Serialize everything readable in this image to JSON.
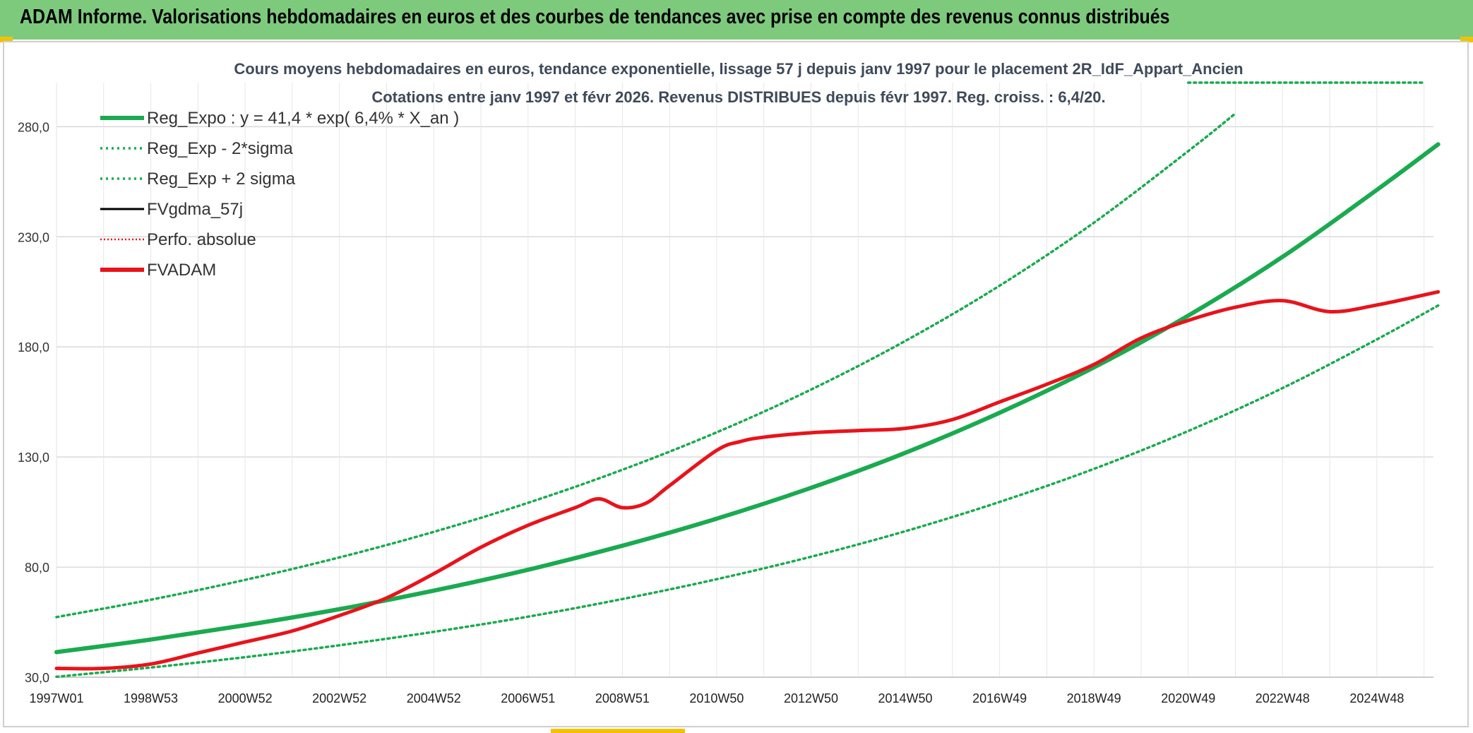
{
  "header": {
    "title": "ADAM Informe. Valorisations hebdomadaires en euros et des courbes de tendances avec prise en compte des revenus connus distribués"
  },
  "colors": {
    "banner": "#7dca7d",
    "green": "#1aaa50",
    "red": "#e8131b",
    "black": "#000000",
    "grid": "#d9d9d9",
    "title_text": "#3f4a5a"
  },
  "chart_data": {
    "type": "line",
    "title": "Cours moyens hebdomadaires en euros, tendance exponentielle, lissage 57 j depuis janv 1997 pour le placement 2R_IdF_Appart_Ancien",
    "subtitle": "Cotations entre janv 1997 et févr 2026. Revenus DISTRIBUES depuis févr 1997. Reg. croiss. : 6,4/20.",
    "xlabel": "",
    "ylabel": "",
    "x_range": [
      1997.0,
      2026.2
    ],
    "ylim": [
      30,
      300
    ],
    "y_ticks": [
      "30,0",
      "80,0",
      "130,0",
      "180,0",
      "230,0",
      "280,0"
    ],
    "y_tick_values": [
      30,
      80,
      130,
      180,
      230,
      280
    ],
    "x_ticks": [
      {
        "label": "1997W01",
        "x": 1997.0
      },
      {
        "label": "1998W53",
        "x": 1999.0
      },
      {
        "label": "2000W52",
        "x": 2001.0
      },
      {
        "label": "2002W52",
        "x": 2003.0
      },
      {
        "label": "2004W52",
        "x": 2005.0
      },
      {
        "label": "2006W51",
        "x": 2007.0
      },
      {
        "label": "2008W51",
        "x": 2009.0
      },
      {
        "label": "2010W50",
        "x": 2011.0
      },
      {
        "label": "2012W50",
        "x": 2013.0
      },
      {
        "label": "2014W50",
        "x": 2015.0
      },
      {
        "label": "2016W49",
        "x": 2017.0
      },
      {
        "label": "2018W49",
        "x": 2019.0
      },
      {
        "label": "2020W49",
        "x": 2021.0
      },
      {
        "label": "2022W48",
        "x": 2023.0
      },
      {
        "label": "2024W48",
        "x": 2025.0
      }
    ],
    "legend": [
      {
        "label": "Reg_Expo : y = 41,4 * exp( 6,4% *  X_an )",
        "color": "#1aaa50",
        "style": "solid-thick"
      },
      {
        "label": "Reg_Exp - 2*sigma",
        "color": "#1aaa50",
        "style": "dotted"
      },
      {
        "label": "Reg_Exp + 2 sigma",
        "color": "#1aaa50",
        "style": "dotted"
      },
      {
        "label": "FVgdma_57j",
        "color": "#000000",
        "style": "solid"
      },
      {
        "label": "Perfo. absolue",
        "color": "#e8131b",
        "style": "dotted-thin"
      },
      {
        "label": "FVADAM",
        "color": "#e8131b",
        "style": "solid-thick"
      }
    ],
    "legend_position": "top-left",
    "series": [
      {
        "name": "Reg_Expo : y = 41,4 * exp( 6,4% *  X_an )",
        "x": [
          1997.0,
          1999.0,
          2001.0,
          2003.0,
          2005.0,
          2007.0,
          2009.0,
          2011.0,
          2013.0,
          2015.0,
          2017.0,
          2019.0,
          2021.0,
          2023.0,
          2025.0,
          2026.3
        ],
        "values": [
          41.4,
          47.1,
          53.6,
          60.9,
          69.3,
          78.8,
          89.7,
          102.0,
          116.0,
          131.9,
          150.1,
          170.7,
          194.2,
          220.9,
          251.3,
          272.0
        ]
      },
      {
        "name": "Reg_Exp - 2*sigma",
        "x": [
          1997.0,
          1999.0,
          2001.0,
          2003.0,
          2005.0,
          2007.0,
          2009.0,
          2011.0,
          2013.0,
          2015.0,
          2017.0,
          2019.0,
          2021.0,
          2023.0,
          2025.0,
          2026.3
        ],
        "values": [
          30.2,
          34.4,
          39.1,
          44.5,
          50.6,
          57.5,
          65.5,
          74.5,
          84.7,
          96.3,
          109.6,
          124.6,
          141.8,
          161.3,
          183.4,
          198.8
        ]
      },
      {
        "name": "Reg_Exp + 2 sigma",
        "x": [
          1997.0,
          1999.0,
          2001.0,
          2003.0,
          2005.0,
          2007.0,
          2009.0,
          2011.0,
          2013.0,
          2015.0,
          2017.0,
          2019.0,
          2021.0,
          2022.0
        ],
        "values": [
          57.3,
          65.2,
          74.2,
          84.4,
          96.0,
          109.2,
          124.2,
          141.2,
          160.6,
          182.7,
          207.8,
          236.4,
          268.9,
          286.0
        ]
      },
      {
        "name": "FVgdma_57j",
        "x": [
          2021.0,
          2026.0
        ],
        "values": [
          300.0,
          300.0
        ]
      },
      {
        "name": "FVADAM",
        "x": [
          1997.0,
          1998.0,
          1999.0,
          2000.0,
          2001.0,
          2002.0,
          2003.0,
          2004.0,
          2005.0,
          2006.0,
          2007.0,
          2008.0,
          2008.5,
          2009.0,
          2009.5,
          2010.0,
          2011.0,
          2011.5,
          2012.0,
          2013.0,
          2014.0,
          2015.0,
          2016.0,
          2017.0,
          2018.0,
          2019.0,
          2020.0,
          2021.0,
          2022.0,
          2023.0,
          2024.0,
          2025.0,
          2026.3
        ],
        "values": [
          34.0,
          34.0,
          36.0,
          41.0,
          46.0,
          51.0,
          58.0,
          66.0,
          77.0,
          89.0,
          99.0,
          107.0,
          111.0,
          107.0,
          109.0,
          117.0,
          133.0,
          137.0,
          139.0,
          141.0,
          142.0,
          143.0,
          147.0,
          155.0,
          163.0,
          172.0,
          184.0,
          192.0,
          198.0,
          201.0,
          196.0,
          199.0,
          205.0
        ]
      }
    ]
  }
}
